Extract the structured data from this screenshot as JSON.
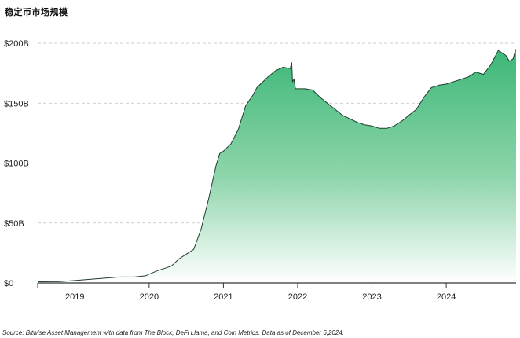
{
  "title": "稳定币市场规模",
  "source": "Source: Bitwise Asset Management with data from The Block, DeFi Llama, and Coin Metrics. Data as of December 6,2024.",
  "colors": {
    "fill_top": "#3cb777",
    "fill_bottom": "#ffffff",
    "line": "#1f3d2c",
    "grid": "#bfbfbf",
    "axis": "#333333"
  },
  "chart_data": {
    "type": "area",
    "title": "稳定币市场规模",
    "xlabel": "",
    "ylabel": "",
    "x_ticks": [
      "2019",
      "2020",
      "2021",
      "2022",
      "2023",
      "2024"
    ],
    "y_ticks": [
      "$0",
      "$50B",
      "$100B",
      "$150B",
      "$200B"
    ],
    "y_tick_values": [
      0,
      50,
      100,
      150,
      200
    ],
    "xlim": [
      2018.5,
      2024.94
    ],
    "ylim": [
      0,
      200
    ],
    "grid": "horizontal dashed",
    "series": [
      {
        "x": [
          2018.5,
          2018.8,
          2019.0,
          2019.2,
          2019.4,
          2019.6,
          2019.8,
          2019.95,
          2020.1,
          2020.2,
          2020.3,
          2020.4,
          2020.5,
          2020.6,
          2020.7,
          2020.8,
          2020.9,
          2020.95,
          2021.0,
          2021.05,
          2021.1,
          2021.2,
          2021.3,
          2021.4,
          2021.45,
          2021.5,
          2021.6,
          2021.7,
          2021.8,
          2021.9,
          2021.92,
          2021.93,
          2021.95,
          2021.97,
          2022.0,
          2022.1,
          2022.2,
          2022.3,
          2022.4,
          2022.5,
          2022.6,
          2022.7,
          2022.8,
          2022.9,
          2023.0,
          2023.1,
          2023.2,
          2023.3,
          2023.4,
          2023.5,
          2023.6,
          2023.7,
          2023.8,
          2023.9,
          2024.0,
          2024.1,
          2024.2,
          2024.3,
          2024.4,
          2024.5,
          2024.6,
          2024.7,
          2024.8,
          2024.85,
          2024.9,
          2024.93,
          2024.94
        ],
        "y": [
          1,
          1.2,
          2,
          3,
          4,
          5,
          5,
          6,
          10,
          12,
          14,
          20,
          24,
          28,
          45,
          70,
          98,
          108,
          110,
          113,
          116,
          128,
          148,
          157,
          163,
          166,
          172,
          177,
          180,
          179,
          184,
          168,
          170,
          162,
          162,
          162,
          161,
          155,
          150,
          145,
          140,
          137,
          134,
          132,
          131,
          129,
          129,
          131,
          135,
          140,
          145,
          155,
          163,
          165,
          166,
          168,
          170,
          172,
          176,
          174,
          182,
          194,
          190,
          185,
          187,
          194,
          195
        ]
      }
    ]
  }
}
